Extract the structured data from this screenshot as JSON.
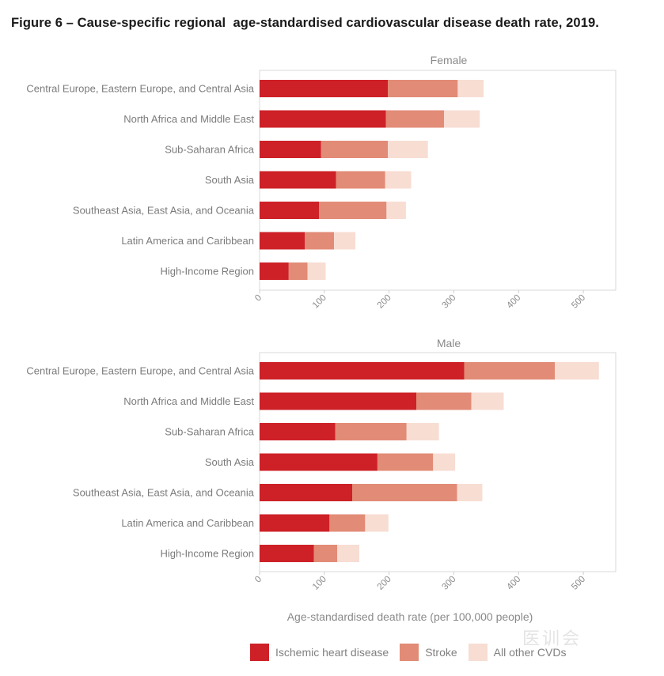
{
  "title": "Figure 6 – Cause-specific regional  age-standardised cardiovascular disease death rate, 2019.",
  "colors": {
    "ischemic": "#cd2127",
    "stroke": "#e28b76",
    "other": "#f8ddd3",
    "frame": "#d9d9d9",
    "grid": "#eeeeee"
  },
  "chart_data": [
    {
      "type": "bar",
      "orientation": "horizontal",
      "stacked": true,
      "title": "Female",
      "categories": [
        "Central Europe, Eastern Europe, and Central Asia",
        "North Africa and Middle East",
        "Sub-Saharan Africa",
        "South Asia",
        "Southeast Asia, East Asia, and Oceania",
        "Latin America and Caribbean",
        "High-Income Region"
      ],
      "series": [
        {
          "name": "Ischemic heart disease",
          "values": [
            198,
            195,
            95,
            118,
            92,
            70,
            45
          ]
        },
        {
          "name": "Stroke",
          "values": [
            108,
            90,
            103,
            76,
            104,
            45,
            29
          ]
        },
        {
          "name": "All other CVDs",
          "values": [
            40,
            55,
            62,
            40,
            30,
            33,
            28
          ]
        }
      ],
      "xlim": [
        0,
        550
      ],
      "xticks": [
        "0",
        "100",
        "200",
        "300",
        "400",
        "500"
      ]
    },
    {
      "type": "bar",
      "orientation": "horizontal",
      "stacked": true,
      "title": "Male",
      "categories": [
        "Central Europe, Eastern Europe, and Central Asia",
        "North Africa and Middle East",
        "Sub-Saharan Africa",
        "South Asia",
        "Southeast Asia, East Asia, and Oceania",
        "Latin America and Caribbean",
        "High-Income Region"
      ],
      "series": [
        {
          "name": "Ischemic heart disease",
          "values": [
            316,
            242,
            117,
            182,
            143,
            108,
            84
          ]
        },
        {
          "name": "Stroke",
          "values": [
            140,
            85,
            110,
            86,
            162,
            55,
            36
          ]
        },
        {
          "name": "All other CVDs",
          "values": [
            68,
            50,
            50,
            34,
            39,
            36,
            34
          ]
        }
      ],
      "xlim": [
        0,
        550
      ],
      "xticks": [
        "0",
        "100",
        "200",
        "300",
        "400",
        "500"
      ],
      "xlabel": "Age-standardised death rate (per 100,000 people)"
    }
  ],
  "legend": [
    {
      "label": "Ischemic heart disease",
      "color_key": "ischemic"
    },
    {
      "label": "Stroke",
      "color_key": "stroke"
    },
    {
      "label": "All other CVDs",
      "color_key": "other"
    }
  ],
  "watermark": "医训会"
}
